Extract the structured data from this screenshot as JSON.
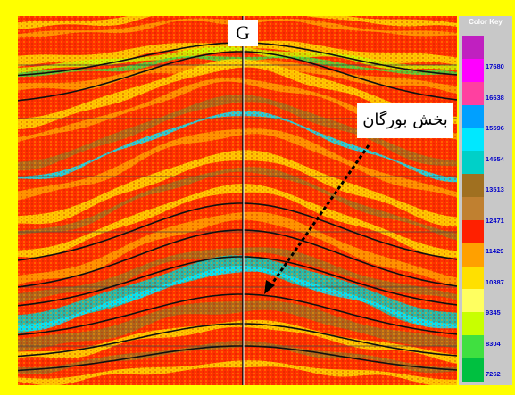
{
  "well": {
    "label": "G"
  },
  "annotation": {
    "text": "بخش بورگان"
  },
  "color_key": {
    "title": "Color Key",
    "colors": [
      "#c020c0",
      "#ff00ff",
      "#ff40a0",
      "#00a0ff",
      "#00e8ff",
      "#00d0c8",
      "#a07020",
      "#c08030",
      "#ff2000",
      "#ffa000",
      "#ffe000",
      "#ffff60",
      "#c8ff00",
      "#40e040",
      "#00c040"
    ],
    "labels": [
      "17680",
      "16638",
      "15596",
      "14554",
      "13513",
      "12471",
      "11429",
      "10387",
      "9345",
      "8304",
      "7262"
    ]
  }
}
